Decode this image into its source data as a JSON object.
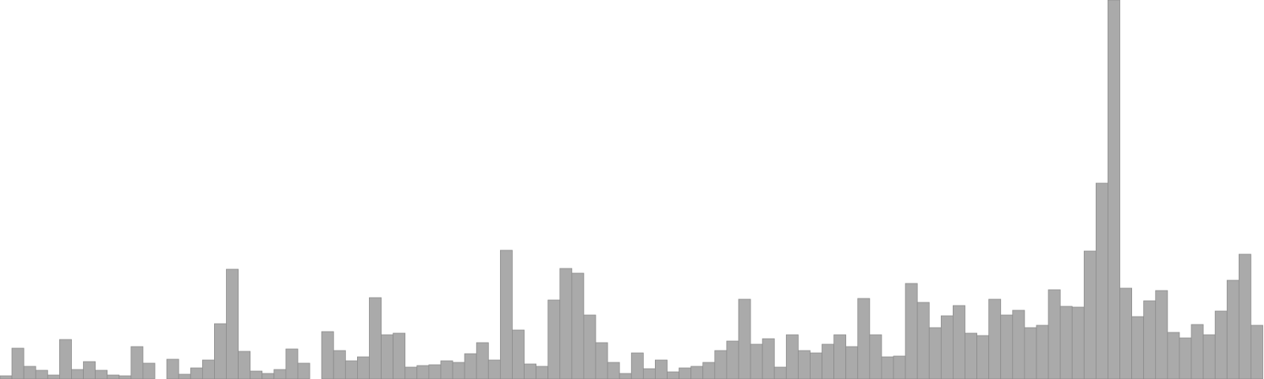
{
  "chart_data": {
    "type": "bar",
    "title": "",
    "xlabel": "",
    "ylabel": "",
    "ylim": [
      0,
      480
    ],
    "grid": false,
    "legend": "none",
    "bar_color": "#aaaaaa",
    "bar_edge_color": "#8c8c8c",
    "values": [
      4,
      39,
      16,
      11,
      5,
      50,
      12,
      22,
      11,
      5,
      4,
      41,
      20,
      0,
      25,
      6,
      14,
      24,
      70,
      139,
      35,
      10,
      7,
      12,
      38,
      20,
      0,
      60,
      36,
      23,
      28,
      103,
      56,
      58,
      15,
      17,
      18,
      23,
      21,
      32,
      46,
      24,
      163,
      62,
      19,
      16,
      100,
      140,
      134,
      81,
      46,
      21,
      7,
      33,
      13,
      24,
      9,
      14,
      16,
      21,
      36,
      48,
      101,
      44,
      51,
      15,
      56,
      36,
      33,
      44,
      56,
      41,
      102,
      56,
      28,
      29,
      121,
      97,
      65,
      80,
      93,
      58,
      55,
      101,
      81,
      87,
      65,
      68,
      113,
      92,
      91,
      162,
      248,
      480,
      115,
      79,
      99,
      112,
      59,
      52,
      69,
      56,
      86,
      125,
      158,
      68
    ]
  }
}
